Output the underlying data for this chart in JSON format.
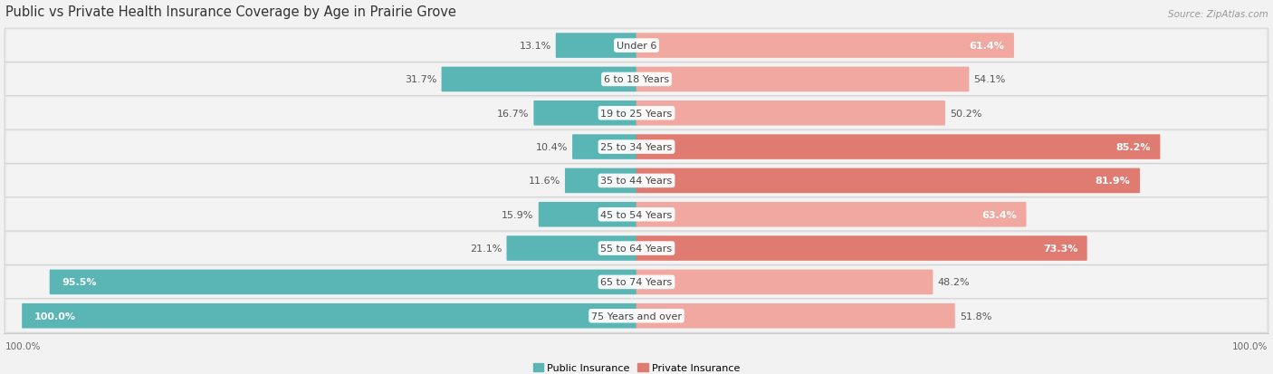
{
  "title": "Public vs Private Health Insurance Coverage by Age in Prairie Grove",
  "source": "Source: ZipAtlas.com",
  "categories": [
    "Under 6",
    "6 to 18 Years",
    "19 to 25 Years",
    "25 to 34 Years",
    "35 to 44 Years",
    "45 to 54 Years",
    "55 to 64 Years",
    "65 to 74 Years",
    "75 Years and over"
  ],
  "public_values": [
    13.1,
    31.7,
    16.7,
    10.4,
    11.6,
    15.9,
    21.1,
    95.5,
    100.0
  ],
  "private_values": [
    61.4,
    54.1,
    50.2,
    85.2,
    81.9,
    63.4,
    73.3,
    48.2,
    51.8
  ],
  "public_color": "#5ab5b5",
  "private_color_strong": "#e07b72",
  "private_color_light": "#f0a8a0",
  "row_bg": "#e8e8e8",
  "title_fontsize": 10.5,
  "label_fontsize": 8.0,
  "value_fontsize": 8.0,
  "source_fontsize": 7.5,
  "figsize": [
    14.06,
    4.14
  ],
  "dpi": 100,
  "bg_color": "#f2f2f2",
  "x_axis_left_label": "100.0%",
  "x_axis_right_label": "100.0%"
}
